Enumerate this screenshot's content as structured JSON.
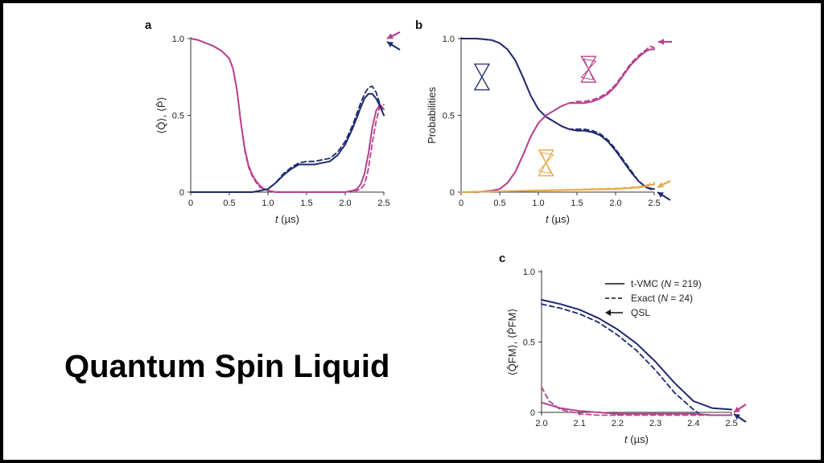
{
  "caption": "Quantum Spin Liquid",
  "colors": {
    "navy": "#1f2a6e",
    "magenta": "#b8408e",
    "orange": "#e8a84a",
    "axis": "#333333"
  },
  "chart_data": [
    {
      "panel": "a",
      "type": "line",
      "xlabel_var": "t",
      "xlabel_unit": " (µs)",
      "ylabel": "⟨Q̂⟩, ⟨P̂⟩",
      "xlim": [
        0,
        2.5
      ],
      "ylim": [
        0,
        1.0
      ],
      "xticks": [
        "0",
        "0.5",
        "1.0",
        "1.5",
        "2.0",
        "2.5"
      ],
      "yticks": [
        "0",
        "0.5",
        "1.0"
      ],
      "series": [
        {
          "color": "magenta",
          "style": "solid",
          "x": [
            0,
            0.1,
            0.2,
            0.3,
            0.4,
            0.5,
            0.55,
            0.6,
            0.65,
            0.7,
            0.75,
            0.8,
            0.85,
            0.9,
            0.95,
            1.0,
            1.1,
            1.2,
            1.4,
            1.6,
            1.8,
            2.0,
            2.1,
            2.15,
            2.2,
            2.25,
            2.3,
            2.35,
            2.4,
            2.45,
            2.5
          ],
          "y": [
            1.0,
            0.99,
            0.97,
            0.95,
            0.92,
            0.87,
            0.8,
            0.66,
            0.45,
            0.28,
            0.17,
            0.11,
            0.07,
            0.04,
            0.02,
            0.01,
            0.0,
            0.0,
            0.0,
            0.0,
            0.0,
            0.0,
            0.01,
            0.02,
            0.05,
            0.12,
            0.25,
            0.42,
            0.53,
            0.57,
            0.54
          ]
        },
        {
          "color": "magenta",
          "style": "dashed",
          "x": [
            0,
            0.1,
            0.2,
            0.3,
            0.4,
            0.5,
            0.55,
            0.6,
            0.65,
            0.7,
            0.75,
            0.8,
            0.85,
            0.9,
            0.95,
            1.0,
            1.1,
            1.2,
            1.4,
            1.6,
            1.8,
            2.0,
            2.1,
            2.15,
            2.2,
            2.25,
            2.3,
            2.35,
            2.4,
            2.45,
            2.5
          ],
          "y": [
            1.0,
            0.99,
            0.97,
            0.95,
            0.92,
            0.87,
            0.8,
            0.66,
            0.45,
            0.27,
            0.16,
            0.1,
            0.06,
            0.03,
            0.02,
            0.01,
            0.0,
            0.0,
            0.0,
            0.0,
            0.0,
            0.0,
            0.01,
            0.01,
            0.02,
            0.05,
            0.15,
            0.32,
            0.46,
            0.56,
            0.57
          ]
        },
        {
          "color": "navy",
          "style": "solid",
          "x": [
            0,
            0.4,
            0.8,
            0.9,
            1.0,
            1.1,
            1.2,
            1.3,
            1.4,
            1.5,
            1.6,
            1.7,
            1.8,
            1.9,
            2.0,
            2.1,
            2.2,
            2.25,
            2.3,
            2.35,
            2.4,
            2.45,
            2.5
          ],
          "y": [
            0.0,
            0.0,
            0.0,
            0.01,
            0.02,
            0.06,
            0.11,
            0.15,
            0.18,
            0.18,
            0.18,
            0.19,
            0.2,
            0.24,
            0.31,
            0.42,
            0.55,
            0.61,
            0.64,
            0.64,
            0.61,
            0.56,
            0.5
          ]
        },
        {
          "color": "navy",
          "style": "dashed",
          "x": [
            0,
            0.4,
            0.8,
            0.9,
            1.0,
            1.1,
            1.2,
            1.3,
            1.4,
            1.5,
            1.6,
            1.7,
            1.8,
            1.9,
            2.0,
            2.1,
            2.2,
            2.25,
            2.3,
            2.35,
            2.4,
            2.45,
            2.5
          ],
          "y": [
            0.0,
            0.0,
            0.0,
            0.01,
            0.02,
            0.06,
            0.12,
            0.16,
            0.19,
            0.2,
            0.2,
            0.21,
            0.22,
            0.26,
            0.33,
            0.44,
            0.58,
            0.64,
            0.68,
            0.69,
            0.65,
            0.57,
            0.5
          ]
        }
      ]
    },
    {
      "panel": "b",
      "type": "line",
      "xlabel_var": "t",
      "xlabel_unit": " (µs)",
      "ylabel": "Probabilities",
      "xlim": [
        0,
        2.5
      ],
      "ylim": [
        0,
        1.0
      ],
      "xticks": [
        "0",
        "0.5",
        "1.0",
        "1.5",
        "2.0",
        "2.5"
      ],
      "yticks": [
        "0",
        "0.5",
        "1.0"
      ],
      "series": [
        {
          "color": "navy",
          "style": "solid",
          "x": [
            0,
            0.2,
            0.4,
            0.5,
            0.6,
            0.7,
            0.8,
            0.9,
            1.0,
            1.1,
            1.2,
            1.3,
            1.4,
            1.5,
            1.6,
            1.7,
            1.8,
            1.9,
            2.0,
            2.1,
            2.2,
            2.3,
            2.4,
            2.5
          ],
          "y": [
            1.0,
            1.0,
            0.99,
            0.97,
            0.93,
            0.86,
            0.75,
            0.63,
            0.54,
            0.49,
            0.46,
            0.43,
            0.41,
            0.4,
            0.4,
            0.39,
            0.37,
            0.33,
            0.27,
            0.2,
            0.13,
            0.07,
            0.03,
            0.02
          ]
        },
        {
          "color": "navy",
          "style": "dashed",
          "x": [
            0,
            0.2,
            0.4,
            0.5,
            0.6,
            0.7,
            0.8,
            0.9,
            1.0,
            1.1,
            1.2,
            1.3,
            1.4,
            1.5,
            1.6,
            1.7,
            1.8,
            1.9,
            2.0,
            2.1,
            2.2,
            2.3,
            2.4,
            2.5
          ],
          "y": [
            1.0,
            1.0,
            0.99,
            0.97,
            0.93,
            0.86,
            0.75,
            0.63,
            0.54,
            0.49,
            0.46,
            0.43,
            0.41,
            0.41,
            0.41,
            0.4,
            0.38,
            0.34,
            0.28,
            0.21,
            0.14,
            0.07,
            0.03,
            0.01
          ]
        },
        {
          "color": "magenta",
          "style": "solid",
          "x": [
            0,
            0.2,
            0.4,
            0.5,
            0.6,
            0.7,
            0.8,
            0.9,
            1.0,
            1.1,
            1.2,
            1.3,
            1.4,
            1.5,
            1.6,
            1.7,
            1.8,
            1.9,
            2.0,
            2.1,
            2.2,
            2.3,
            2.4,
            2.45,
            2.5
          ],
          "y": [
            0.0,
            0.0,
            0.01,
            0.02,
            0.06,
            0.13,
            0.24,
            0.36,
            0.45,
            0.5,
            0.53,
            0.56,
            0.58,
            0.58,
            0.58,
            0.59,
            0.61,
            0.64,
            0.69,
            0.76,
            0.83,
            0.88,
            0.92,
            0.93,
            0.93
          ]
        },
        {
          "color": "magenta",
          "style": "dashed",
          "x": [
            0,
            0.2,
            0.4,
            0.5,
            0.6,
            0.7,
            0.8,
            0.9,
            1.0,
            1.1,
            1.2,
            1.3,
            1.4,
            1.5,
            1.6,
            1.7,
            1.8,
            1.9,
            2.0,
            2.1,
            2.2,
            2.3,
            2.4,
            2.45,
            2.5
          ],
          "y": [
            0.0,
            0.0,
            0.01,
            0.02,
            0.06,
            0.13,
            0.24,
            0.36,
            0.45,
            0.5,
            0.53,
            0.56,
            0.58,
            0.59,
            0.59,
            0.6,
            0.62,
            0.65,
            0.7,
            0.77,
            0.84,
            0.89,
            0.93,
            0.95,
            0.94
          ]
        },
        {
          "color": "orange",
          "style": "solid",
          "x": [
            0,
            0.5,
            1.0,
            1.5,
            2.0,
            2.3,
            2.4,
            2.5
          ],
          "y": [
            0.0,
            0.005,
            0.01,
            0.015,
            0.02,
            0.03,
            0.04,
            0.05
          ]
        },
        {
          "color": "orange",
          "style": "dashed",
          "x": [
            0,
            0.5,
            1.0,
            1.5,
            2.0,
            2.3,
            2.4,
            2.5
          ],
          "y": [
            0.0,
            0.005,
            0.012,
            0.017,
            0.024,
            0.034,
            0.045,
            0.06
          ]
        }
      ],
      "annotations": [
        {
          "shape": "hourglass",
          "color": "navy",
          "x": 0.27,
          "y": 0.75
        },
        {
          "shape": "hourglass-twisted",
          "color": "magenta",
          "x": 1.65,
          "y": 0.8
        },
        {
          "shape": "hourglass-twisted",
          "color": "orange",
          "x": 1.1,
          "y": 0.19
        }
      ]
    },
    {
      "panel": "c",
      "type": "line",
      "xlabel_var": "t",
      "xlabel_unit": " (µs)",
      "ylabel": "⟨Q̂FM⟩, ⟨P̂FM⟩",
      "xlim": [
        2.0,
        2.5
      ],
      "ylim": [
        0,
        1.0
      ],
      "xticks": [
        "2.0",
        "2.1",
        "2.2",
        "2.3",
        "2.4",
        "2.5"
      ],
      "yticks": [
        "0",
        "0.5",
        "1.0"
      ],
      "legend": [
        {
          "label": "t-VMC (",
          "var": "N",
          "rest": " = 219)",
          "style": "solid"
        },
        {
          "label": "Exact (",
          "var": "N",
          "rest": " = 24)",
          "style": "dashed"
        },
        {
          "label": "QSL",
          "var": "",
          "rest": "",
          "style": "arrow"
        }
      ],
      "series": [
        {
          "color": "navy",
          "style": "solid",
          "x": [
            2.0,
            2.05,
            2.1,
            2.15,
            2.2,
            2.25,
            2.3,
            2.35,
            2.4,
            2.45,
            2.5
          ],
          "y": [
            0.8,
            0.77,
            0.73,
            0.67,
            0.59,
            0.49,
            0.36,
            0.21,
            0.08,
            0.03,
            0.02
          ]
        },
        {
          "color": "navy",
          "style": "dashed",
          "x": [
            2.0,
            2.05,
            2.1,
            2.15,
            2.2,
            2.25,
            2.3,
            2.35,
            2.4,
            2.42
          ],
          "y": [
            0.77,
            0.74,
            0.7,
            0.64,
            0.55,
            0.44,
            0.3,
            0.14,
            0.02,
            -0.02
          ]
        },
        {
          "color": "magenta",
          "style": "solid",
          "x": [
            2.0,
            2.05,
            2.1,
            2.15,
            2.2,
            2.3,
            2.4,
            2.45,
            2.5
          ],
          "y": [
            0.07,
            0.03,
            0.01,
            0.0,
            -0.01,
            -0.01,
            -0.01,
            -0.02,
            -0.02
          ]
        },
        {
          "color": "magenta",
          "style": "dashed",
          "x": [
            2.0,
            2.02,
            2.05,
            2.1,
            2.15,
            2.2,
            2.3,
            2.4,
            2.5
          ],
          "y": [
            0.18,
            0.08,
            0.02,
            -0.01,
            -0.02,
            -0.02,
            -0.02,
            -0.02,
            -0.02
          ]
        }
      ]
    }
  ]
}
